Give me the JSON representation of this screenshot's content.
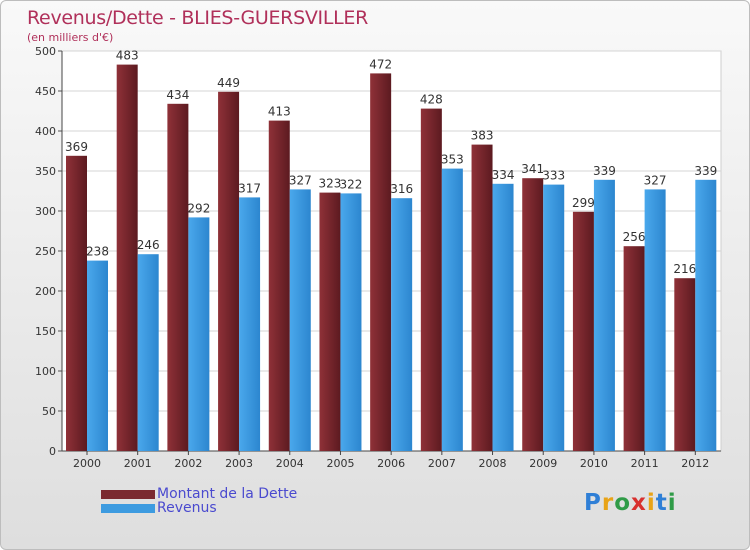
{
  "chart_data": {
    "type": "bar",
    "title": "Revenus/Dette - BLIES-GUERSVILLER",
    "subtitle": "(en milliers d'€)",
    "categories": [
      "2000",
      "2001",
      "2002",
      "2003",
      "2004",
      "2005",
      "2006",
      "2007",
      "2008",
      "2009",
      "2010",
      "2011",
      "2012"
    ],
    "series": [
      {
        "name": "Montant de la Dette",
        "color": "#7b2a30",
        "values": [
          369,
          483,
          434,
          449,
          413,
          323,
          472,
          428,
          383,
          341,
          299,
          256,
          216
        ]
      },
      {
        "name": "Revenus",
        "color": "#3d9be0",
        "values": [
          238,
          246,
          292,
          317,
          327,
          322,
          316,
          353,
          334,
          333,
          339,
          327,
          339
        ]
      }
    ],
    "ylim": [
      0,
      500
    ],
    "yticks": [
      0,
      50,
      100,
      150,
      200,
      250,
      300,
      350,
      400,
      450,
      500
    ],
    "grid": true,
    "legend_position": "bottom-left"
  },
  "logo": {
    "text": "Proxiti",
    "letters": [
      "P",
      "r",
      "o",
      "x",
      "i",
      "t",
      "i"
    ],
    "colors": [
      "#2f7fd6",
      "#e8a317",
      "#2f9b47",
      "#d8302e",
      "#e8a317",
      "#2f7fd6",
      "#2f9b47"
    ]
  }
}
